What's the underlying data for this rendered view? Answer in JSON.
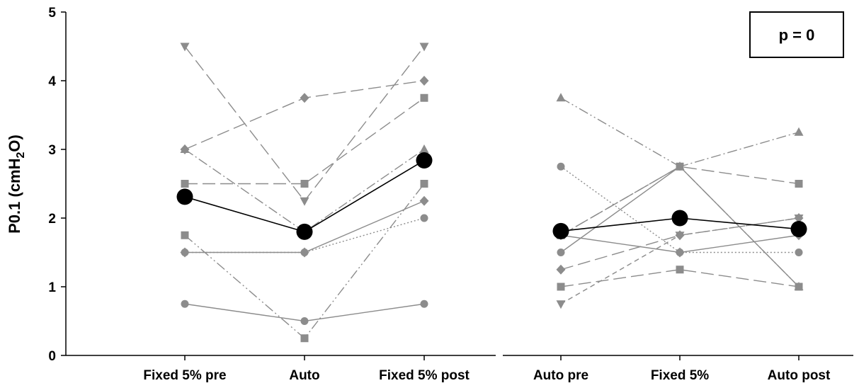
{
  "chart_data": {
    "type": "line",
    "ylabel_main": "P0.1 (cmH",
    "ylabel_sub": "2",
    "ylabel_end": "O)",
    "ylim": [
      0,
      5
    ],
    "yticks": [
      "0",
      "1",
      "2",
      "3",
      "4",
      "5"
    ],
    "annotation": "p = 0",
    "colors": {
      "individual": "#8c8c8c",
      "mean": "#000000",
      "axis": "#000000"
    },
    "panels": [
      {
        "categories": [
          "Fixed 5% pre",
          "Auto",
          "Fixed 5% post"
        ],
        "individual": [
          {
            "marker": "triangle-down",
            "dash": "long",
            "values": [
              4.5,
              2.25,
              4.5
            ]
          },
          {
            "marker": "diamond",
            "dash": "long",
            "values": [
              3.0,
              3.75,
              4.0
            ]
          },
          {
            "marker": "square",
            "dash": "long",
            "values": [
              2.5,
              2.5,
              3.75
            ]
          },
          {
            "marker": "triangle-up",
            "dash": "dashdot",
            "values": [
              3.0,
              1.8,
              3.0
            ]
          },
          {
            "marker": "square",
            "dash": "dashdotdot",
            "values": [
              1.75,
              0.25,
              2.5
            ]
          },
          {
            "marker": "diamond",
            "dash": "solid",
            "values": [
              1.5,
              1.5,
              2.25
            ]
          },
          {
            "marker": "circle",
            "dash": "dotted",
            "values": [
              1.5,
              1.5,
              2.0
            ]
          },
          {
            "marker": "circle",
            "dash": "solid",
            "values": [
              0.75,
              0.5,
              0.75
            ]
          }
        ],
        "mean": [
          2.31,
          1.8,
          2.84
        ]
      },
      {
        "categories": [
          "Auto pre",
          "Fixed 5%",
          "Auto post"
        ],
        "individual": [
          {
            "marker": "triangle-up",
            "dash": "dashdotdot",
            "values": [
              3.75,
              2.75,
              1.0
            ]
          },
          {
            "marker": "circle",
            "dash": "dotted",
            "values": [
              2.75,
              1.5,
              1.5
            ]
          },
          {
            "marker": "triangle-up",
            "dash": "dashdot",
            "values": [
              1.75,
              2.75,
              3.25
            ]
          },
          {
            "marker": "circle",
            "dash": "solid",
            "values": [
              1.5,
              2.75,
              1.0
            ]
          },
          {
            "marker": "square",
            "dash": "long",
            "values": [
              1.0,
              1.25,
              1.0
            ]
          },
          {
            "marker": "diamond",
            "dash": "long",
            "values": [
              1.25,
              1.75,
              2.0
            ]
          },
          {
            "marker": "triangle-down",
            "dash": "dashed",
            "values": [
              0.75,
              1.75,
              2.0
            ]
          },
          {
            "marker": "square",
            "dash": "long",
            "values": [
              1.75,
              2.75,
              2.5
            ]
          },
          {
            "marker": "diamond",
            "dash": "solid",
            "values": [
              1.75,
              1.5,
              1.75
            ]
          }
        ],
        "mean": [
          1.81,
          2.0,
          1.84
        ]
      }
    ]
  }
}
